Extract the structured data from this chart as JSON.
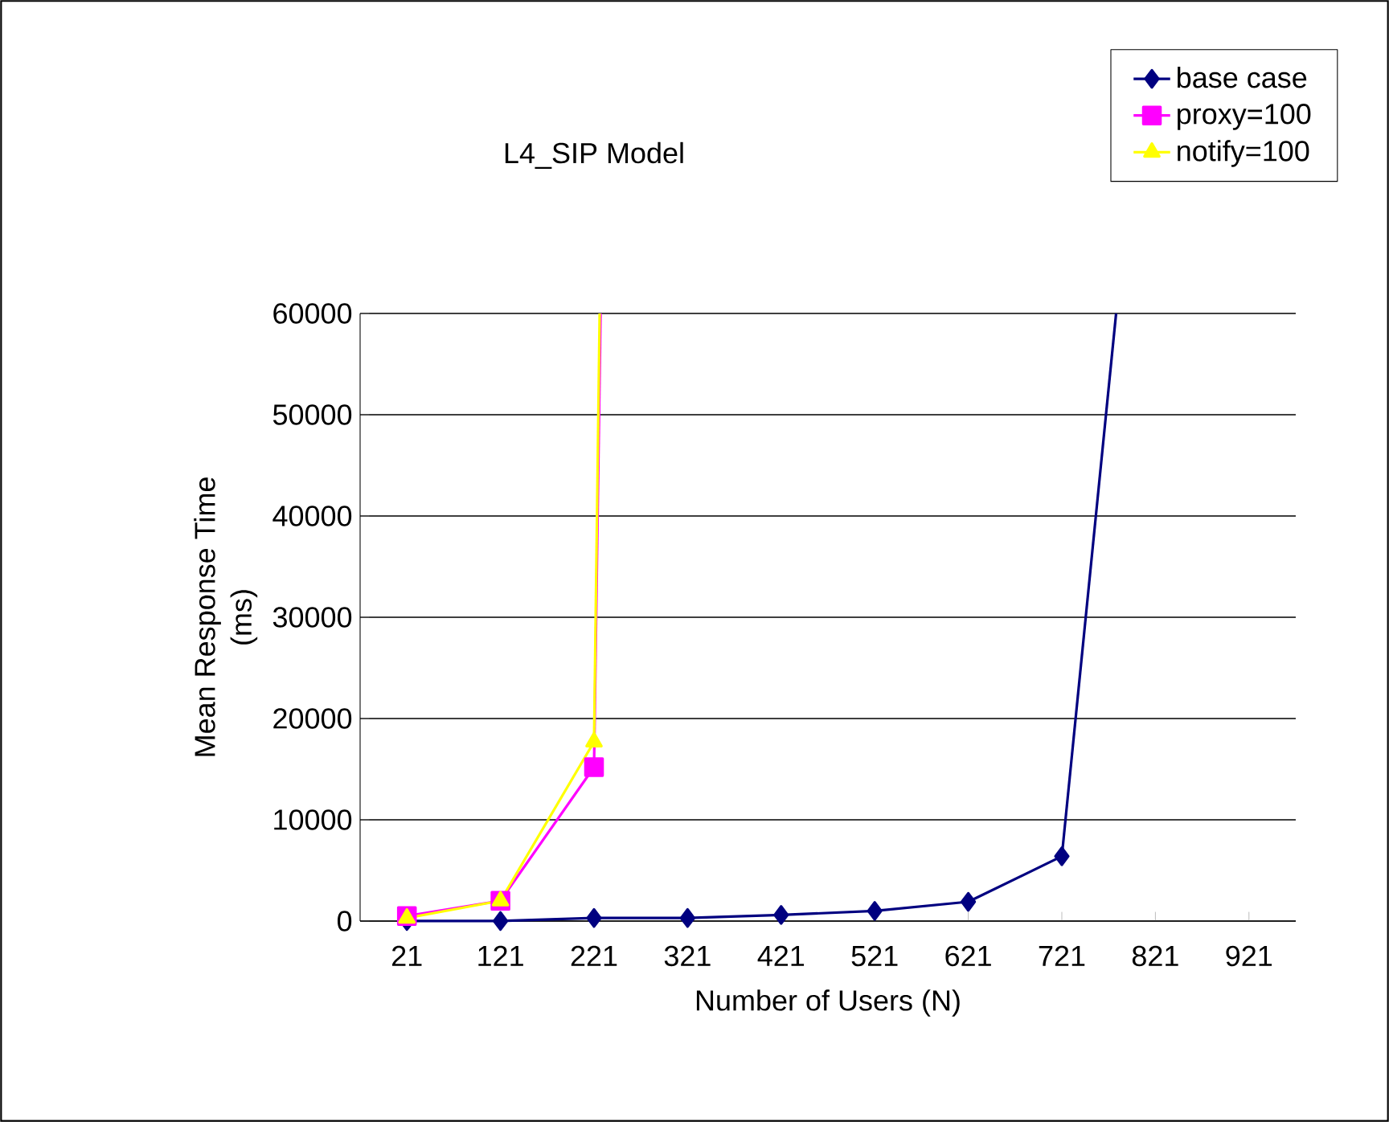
{
  "chart_data": {
    "type": "line",
    "title": "L4_SIP Model",
    "xlabel": "Number of Users (N)",
    "ylabel": "Mean Response Time (ms)",
    "xlim": [
      -29,
      971
    ],
    "xticks": [
      21,
      121,
      221,
      321,
      421,
      521,
      621,
      721,
      821,
      921
    ],
    "ylim": [
      0,
      60000
    ],
    "yticks": [
      0,
      10000,
      20000,
      30000,
      40000,
      50000,
      60000
    ],
    "grid": "y",
    "legend": "top right",
    "series": [
      {
        "name": "base case",
        "color": "#000080",
        "marker": "diamond",
        "x": [
          21,
          121,
          221,
          321,
          421,
          521,
          621,
          721
        ],
        "values": [
          0,
          0,
          300,
          300,
          600,
          1000,
          1900,
          6400
        ]
      },
      {
        "color": "#000080",
        "marker": "none",
        "x": [
          721,
          779
        ],
        "values": [
          6400,
          60000
        ]
      },
      {
        "name": "proxy=100",
        "color": "#ff00ff",
        "marker": "square",
        "x": [
          21,
          121,
          221
        ],
        "values": [
          500,
          2000,
          15200
        ]
      },
      {
        "color": "#ff00ff",
        "marker": "none",
        "x": [
          221,
          228
        ],
        "values": [
          15200,
          60000
        ]
      },
      {
        "name": "notify=100",
        "color": "#ffff00",
        "marker": "triangle",
        "x": [
          21,
          121,
          221
        ],
        "values": [
          300,
          2000,
          17700
        ]
      },
      {
        "color": "#ffff00",
        "marker": "none",
        "x": [
          221,
          227
        ],
        "values": [
          17700,
          60000
        ]
      }
    ]
  }
}
